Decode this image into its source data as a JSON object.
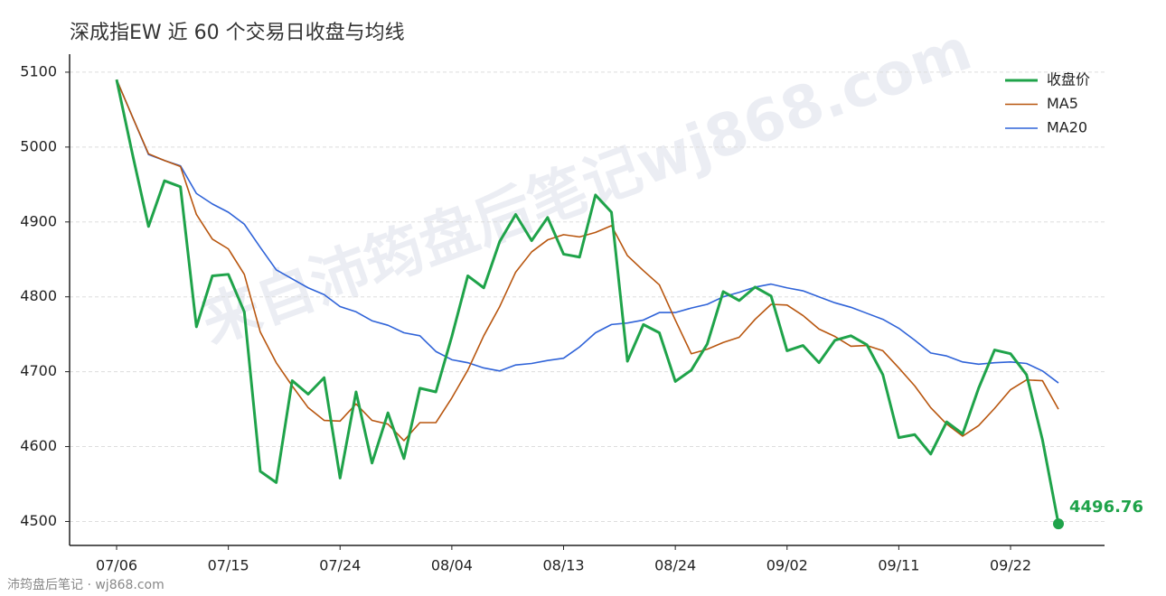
{
  "chart_data": {
    "type": "line",
    "title": "深成指EW 近 60 个交易日收盘与均线",
    "watermark": "来自沛筠盘后笔记wj868.com",
    "footer": "沛筠盘后笔记 · wj868.com",
    "categories": [
      "07/06",
      null,
      null,
      null,
      null,
      null,
      null,
      "07/15",
      null,
      null,
      null,
      null,
      null,
      null,
      "07/24",
      null,
      null,
      null,
      null,
      null,
      null,
      "08/04",
      null,
      null,
      null,
      null,
      null,
      null,
      "08/13",
      null,
      null,
      null,
      null,
      null,
      null,
      "08/24",
      null,
      null,
      null,
      null,
      null,
      null,
      "09/02",
      null,
      null,
      null,
      null,
      null,
      null,
      "09/11",
      null,
      null,
      null,
      null,
      null,
      null,
      "09/22",
      null,
      null,
      null
    ],
    "ylim": [
      4468,
      5118
    ],
    "yticks": [
      4500,
      4600,
      4700,
      4800,
      4900,
      5000,
      5100
    ],
    "grid": true,
    "legend": "upper right",
    "series": [
      {
        "name": "收盘价",
        "color": "#1fa34a",
        "values": [
          5090,
          4990,
          4894,
          4955,
          4947,
          4760,
          4828,
          4830,
          4780,
          4567,
          4552,
          4688,
          4670,
          4692,
          4558,
          4673,
          4578,
          4645,
          4584,
          4678,
          4673,
          4747,
          4828,
          4812,
          4874,
          4910,
          4875,
          4906,
          4857,
          4853,
          4936,
          4913,
          4714,
          4763,
          4752,
          4687,
          4702,
          4737,
          4807,
          4795,
          4813,
          4801,
          4728,
          4735,
          4712,
          4742,
          4748,
          4736,
          4696,
          4612,
          4616,
          4590,
          4633,
          4617,
          4678,
          4729,
          4724,
          4696,
          4609,
          4496.76
        ]
      },
      {
        "name": "MA5",
        "color": "#b8560f",
        "values": [
          5090,
          5040,
          4991,
          4982,
          4974,
          4910,
          4877,
          4864,
          4830,
          4753,
          4712,
          4681,
          4652,
          4635,
          4634,
          4657,
          4635,
          4630,
          4608,
          4632,
          4632,
          4665,
          4702,
          4748,
          4787,
          4833,
          4860,
          4876,
          4883,
          4880,
          4886,
          4895,
          4855,
          4835,
          4816,
          4769,
          4724,
          4730,
          4739,
          4746,
          4770,
          4790,
          4789,
          4775,
          4757,
          4747,
          4734,
          4735,
          4728,
          4705,
          4681,
          4652,
          4630,
          4614,
          4628,
          4651,
          4676,
          4689,
          4688,
          4650
        ]
      },
      {
        "name": "MA20",
        "color": "#2f63d8",
        "values": [
          5090,
          5040,
          4990,
          4982,
          4975,
          4938,
          4924,
          4913,
          4897,
          4866,
          4836,
          4824,
          4812,
          4803,
          4787,
          4780,
          4768,
          4762,
          4752,
          4748,
          4727,
          4716,
          4712,
          4705,
          4701,
          4709,
          4711,
          4715,
          4718,
          4733,
          4752,
          4763,
          4765,
          4769,
          4779,
          4779,
          4785,
          4790,
          4800,
          4806,
          4813,
          4817,
          4812,
          4808,
          4800,
          4792,
          4786,
          4778,
          4770,
          4758,
          4742,
          4725,
          4721,
          4713,
          4710,
          4712,
          4713,
          4711,
          4701,
          4685
        ]
      }
    ]
  }
}
